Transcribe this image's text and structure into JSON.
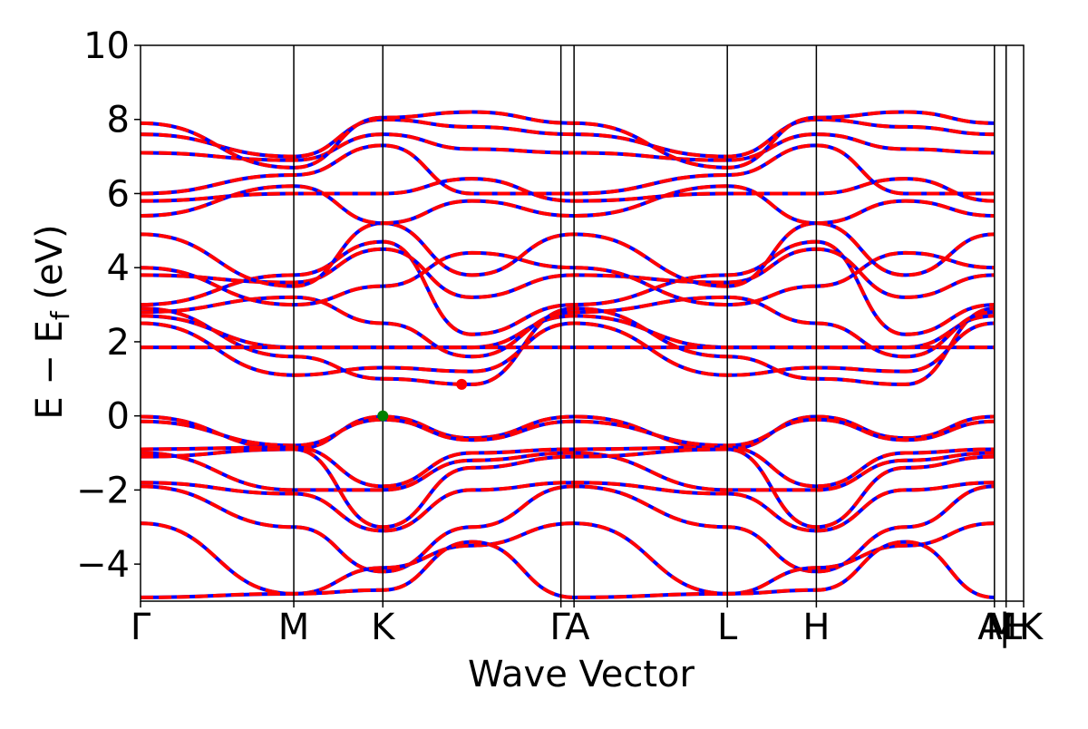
{
  "chart_data": {
    "type": "line",
    "title": "",
    "xlabel": "Wave Vector",
    "ylabel": "E − E",
    "ylabel_sub": "f",
    "ylabel_unit": " (eV)",
    "ylim": [
      -5,
      10
    ],
    "yticks": [
      10,
      8,
      6,
      4,
      2,
      0,
      -2,
      -4
    ],
    "ytick_labels": [
      "10",
      "8",
      "6",
      "4",
      "2",
      "0",
      "−2",
      "−4"
    ],
    "xlim": [
      0,
      6.05
    ],
    "grid": false,
    "legend": "none",
    "kpoints": [
      {
        "label": "Γ",
        "x": 0.0
      },
      {
        "label": "M",
        "x": 1.05
      },
      {
        "label": "K",
        "x": 1.66
      },
      {
        "label": "Γ",
        "x": 2.88
      },
      {
        "label": "A",
        "x": 2.97
      },
      {
        "label": "L",
        "x": 4.02
      },
      {
        "label": "H",
        "x": 4.63
      },
      {
        "label": "A",
        "x": 5.85
      },
      {
        "label": "L",
        "x": 5.93
      },
      {
        "label": "M",
        "x": 5.93
      },
      {
        "label": "H",
        "x": 6.05
      },
      {
        "label": "K",
        "x": 6.05
      }
    ],
    "tick_text_labels": [
      "Γ",
      "M",
      "K",
      "Γ",
      "A",
      "L",
      "H",
      "A",
      "M",
      "|",
      "L",
      "H",
      "K"
    ],
    "series_colors": {
      "spin_up": "#0000ff",
      "spin_down": "#ff0000"
    },
    "series": [
      {
        "values": [
          -0.02,
          -0.9,
          -0.02,
          -0.6,
          -0.02,
          -0.9,
          -0.02,
          -0.6,
          -0.02
        ]
      },
      {
        "values": [
          -0.15,
          -0.8,
          -0.1,
          -0.65,
          -0.15,
          -0.8,
          -0.1,
          -0.65,
          -0.15
        ]
      },
      {
        "values": [
          -0.9,
          -0.85,
          -1.9,
          -1.0,
          -0.9,
          -0.85,
          -1.9,
          -1.0,
          -0.9
        ]
      },
      {
        "values": [
          -1.0,
          -2.0,
          -2.0,
          -1.2,
          -1.0,
          -2.0,
          -2.0,
          -1.2,
          -1.0
        ]
      },
      {
        "values": [
          -1.1,
          -0.9,
          -3.0,
          -1.4,
          -1.1,
          -0.9,
          -3.0,
          -1.4,
          -1.1
        ]
      },
      {
        "values": [
          -1.8,
          -2.1,
          -3.1,
          -2.0,
          -1.8,
          -2.1,
          -3.1,
          -2.0,
          -1.8
        ]
      },
      {
        "values": [
          -1.9,
          -3.0,
          -4.2,
          -3.0,
          -1.9,
          -3.0,
          -4.2,
          -3.0,
          -1.9
        ]
      },
      {
        "values": [
          -2.9,
          -4.8,
          -4.1,
          -3.5,
          -2.9,
          -4.8,
          -4.1,
          -3.5,
          -2.9
        ]
      },
      {
        "values": [
          -4.9,
          -4.8,
          -4.7,
          -3.4,
          -4.9,
          -4.8,
          -4.7,
          -3.4,
          -4.9
        ]
      },
      {
        "values": [
          2.9,
          1.6,
          1.0,
          0.85,
          2.9,
          1.6,
          1.0,
          0.85,
          2.9
        ]
      },
      {
        "values": [
          2.7,
          1.85,
          1.85,
          1.85,
          2.7,
          1.85,
          1.85,
          1.85,
          2.7
        ]
      },
      {
        "values": [
          1.85,
          1.85,
          1.85,
          1.85,
          1.85,
          1.85,
          1.85,
          1.85,
          1.85
        ]
      },
      {
        "values": [
          2.5,
          1.1,
          1.3,
          1.2,
          2.5,
          1.1,
          1.3,
          1.2,
          2.5
        ]
      },
      {
        "values": [
          2.8,
          3.2,
          2.5,
          1.6,
          2.8,
          3.2,
          2.5,
          1.6,
          2.8
        ]
      },
      {
        "values": [
          3.0,
          3.8,
          4.7,
          2.2,
          3.0,
          3.8,
          4.7,
          2.2,
          3.0
        ]
      },
      {
        "values": [
          3.8,
          3.6,
          4.5,
          3.2,
          3.8,
          3.6,
          4.5,
          3.2,
          3.8
        ]
      },
      {
        "values": [
          4.0,
          3.0,
          3.5,
          4.4,
          4.0,
          3.0,
          3.5,
          4.4,
          4.0
        ]
      },
      {
        "values": [
          4.9,
          3.5,
          5.2,
          3.8,
          4.9,
          3.5,
          5.2,
          3.8,
          4.9
        ]
      },
      {
        "values": [
          5.4,
          6.2,
          5.2,
          5.8,
          5.4,
          6.2,
          5.2,
          5.8,
          5.4
        ]
      },
      {
        "values": [
          5.8,
          6.0,
          6.0,
          6.4,
          5.8,
          6.0,
          6.0,
          6.4,
          5.8
        ]
      },
      {
        "values": [
          6.0,
          6.5,
          7.3,
          6.0,
          6.0,
          6.5,
          7.3,
          6.0,
          6.0
        ]
      },
      {
        "values": [
          7.1,
          6.9,
          7.6,
          7.2,
          7.1,
          6.9,
          7.6,
          7.2,
          7.1
        ]
      },
      {
        "values": [
          7.6,
          7.0,
          8.0,
          7.8,
          7.6,
          7.0,
          8.0,
          7.8,
          7.6
        ]
      },
      {
        "values": [
          7.9,
          6.7,
          8.05,
          8.2,
          7.9,
          6.7,
          8.05,
          8.2,
          7.9
        ]
      }
    ],
    "series_x": [
      0.0,
      1.05,
      1.66,
      2.27,
      2.97,
      4.02,
      4.63,
      5.24,
      5.85
    ],
    "markers": [
      {
        "x": 1.66,
        "y": 0.0,
        "color": "#008000"
      },
      {
        "x": 2.2,
        "y": 0.85,
        "color": "#ff0000"
      }
    ]
  }
}
